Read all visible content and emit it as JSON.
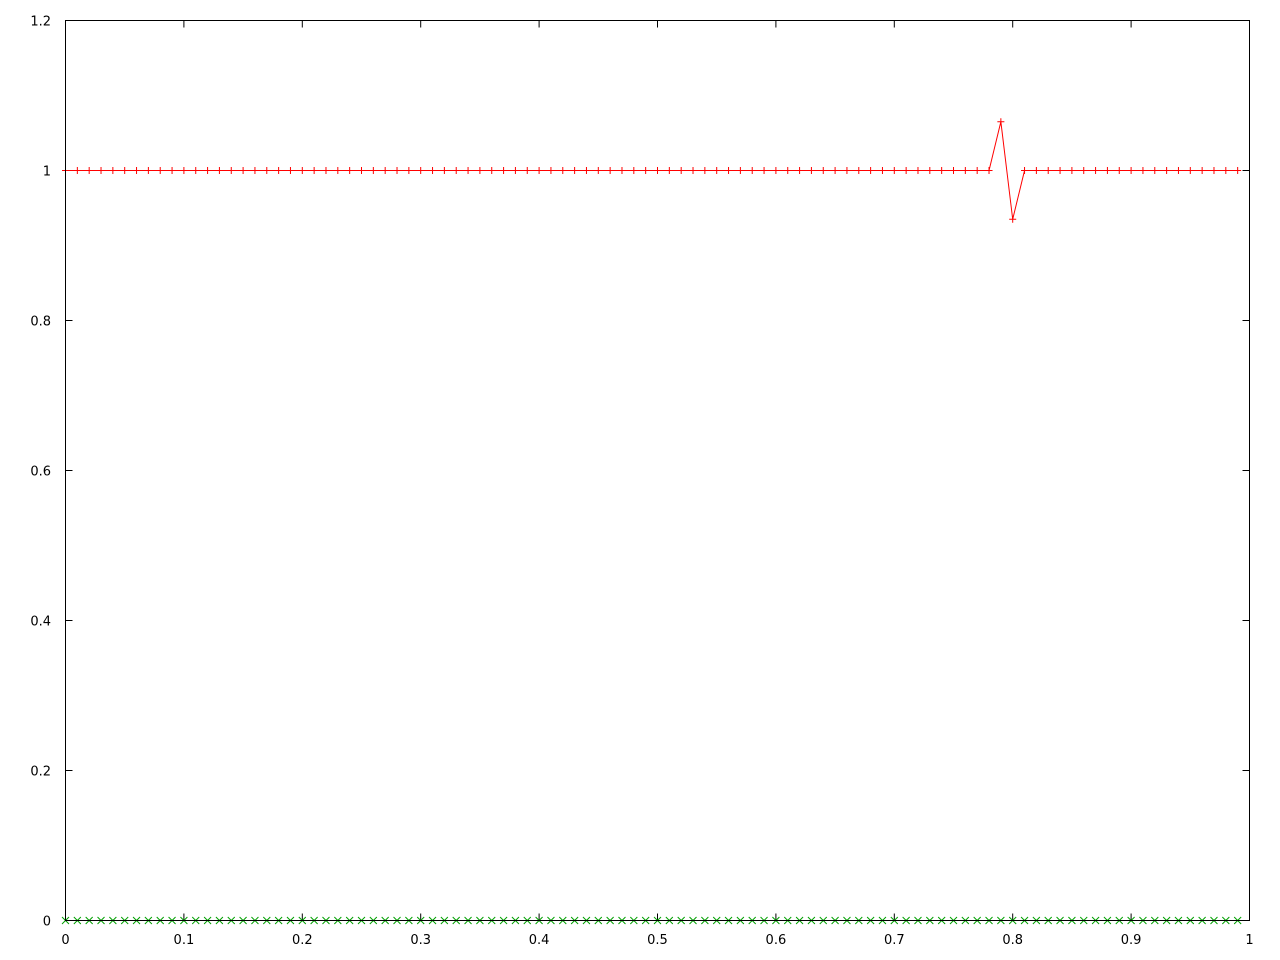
{
  "chart_data": {
    "type": "line",
    "title": "",
    "xlabel": "",
    "ylabel": "",
    "xlim": [
      0,
      1
    ],
    "ylim": [
      0,
      1.2
    ],
    "grid": false,
    "legend": "none",
    "x_ticks": [
      "0",
      "0.1",
      "0.2",
      "0.3",
      "0.4",
      "0.5",
      "0.6",
      "0.7",
      "0.8",
      "0.9",
      "1"
    ],
    "y_ticks": [
      "0",
      "0.2",
      "0.4",
      "0.6",
      "0.8",
      "1",
      "1.2"
    ],
    "x_tick_values": [
      0,
      0.1,
      0.2,
      0.3,
      0.4,
      0.5,
      0.6,
      0.7,
      0.8,
      0.9,
      1
    ],
    "y_tick_values": [
      0,
      0.2,
      0.4,
      0.6,
      0.8,
      1,
      1.2
    ],
    "x": [
      0.0,
      0.01,
      0.02,
      0.03,
      0.04,
      0.05,
      0.06,
      0.07,
      0.08,
      0.09,
      0.1,
      0.11,
      0.12,
      0.13,
      0.14,
      0.15,
      0.16,
      0.17,
      0.18,
      0.19,
      0.2,
      0.21,
      0.22,
      0.23,
      0.24,
      0.25,
      0.26,
      0.27,
      0.28,
      0.29,
      0.3,
      0.31,
      0.32,
      0.33,
      0.34,
      0.35,
      0.36,
      0.37,
      0.38,
      0.39,
      0.4,
      0.41,
      0.42,
      0.43,
      0.44,
      0.45,
      0.46,
      0.47,
      0.48,
      0.49,
      0.5,
      0.51,
      0.52,
      0.53,
      0.54,
      0.55,
      0.56,
      0.57,
      0.58,
      0.59,
      0.6,
      0.61,
      0.62,
      0.63,
      0.64,
      0.65,
      0.66,
      0.67,
      0.68,
      0.69,
      0.7,
      0.71,
      0.72,
      0.73,
      0.74,
      0.75,
      0.76,
      0.77,
      0.78,
      0.79,
      0.8,
      0.81,
      0.82,
      0.83,
      0.84,
      0.85,
      0.86,
      0.87,
      0.88,
      0.89,
      0.9,
      0.91,
      0.92,
      0.93,
      0.94,
      0.95,
      0.96,
      0.97,
      0.98,
      0.99
    ],
    "series": [
      {
        "color": "#ff0000",
        "marker": "plus",
        "line": true,
        "values": [
          1,
          1,
          1,
          1,
          1,
          1,
          1,
          1,
          1,
          1,
          1,
          1,
          1,
          1,
          1,
          1,
          1,
          1,
          1,
          1,
          1,
          1,
          1,
          1,
          1,
          1,
          1,
          1,
          1,
          1,
          1,
          1,
          1,
          1,
          1,
          1,
          1,
          1,
          1,
          1,
          1,
          1,
          1,
          1,
          1,
          1,
          1,
          1,
          1,
          1,
          1,
          1,
          1,
          1,
          1,
          1,
          1,
          1,
          1,
          1,
          1,
          1,
          1,
          1,
          1,
          1,
          1,
          1,
          1,
          1,
          1,
          1,
          1,
          1,
          1,
          1,
          1,
          1,
          1,
          1.065,
          0.935,
          1,
          1,
          1,
          1,
          1,
          1,
          1,
          1,
          1,
          1,
          1,
          1,
          1,
          1,
          1,
          1,
          1,
          1,
          1
        ]
      },
      {
        "color": "#00a000",
        "marker": "cross",
        "line": false,
        "values": [
          0,
          0,
          0,
          0,
          0,
          0,
          0,
          0,
          0,
          0,
          0,
          0,
          0,
          0,
          0,
          0,
          0,
          0,
          0,
          0,
          0,
          0,
          0,
          0,
          0,
          0,
          0,
          0,
          0,
          0,
          0,
          0,
          0,
          0,
          0,
          0,
          0,
          0,
          0,
          0,
          0,
          0,
          0,
          0,
          0,
          0,
          0,
          0,
          0,
          0,
          0,
          0,
          0,
          0,
          0,
          0,
          0,
          0,
          0,
          0,
          0,
          0,
          0,
          0,
          0,
          0,
          0,
          0,
          0,
          0,
          0,
          0,
          0,
          0,
          0,
          0,
          0,
          0,
          0,
          0,
          0,
          0,
          0,
          0,
          0,
          0,
          0,
          0,
          0,
          0,
          0,
          0,
          0,
          0,
          0,
          0,
          0,
          0,
          0,
          0
        ]
      }
    ]
  }
}
